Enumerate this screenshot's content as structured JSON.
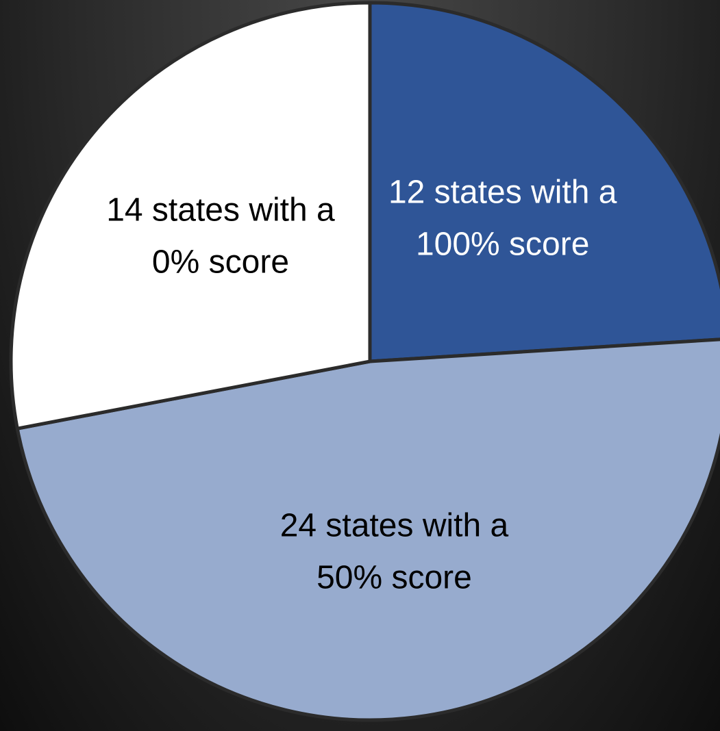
{
  "chart_data": {
    "type": "pie",
    "values": [
      12,
      24,
      14
    ],
    "value_labels": [
      [
        "12 states with a",
        "100% score"
      ],
      [
        "24 states with a",
        "50% score"
      ],
      [
        "14 states with a",
        "0% score"
      ]
    ],
    "colors": [
      "#2f5597",
      "#97abce",
      "#ffffff"
    ],
    "label_colors": [
      "#ffffff",
      "#000000",
      "#000000"
    ],
    "start_angle": 0,
    "direction": "clockwise"
  }
}
